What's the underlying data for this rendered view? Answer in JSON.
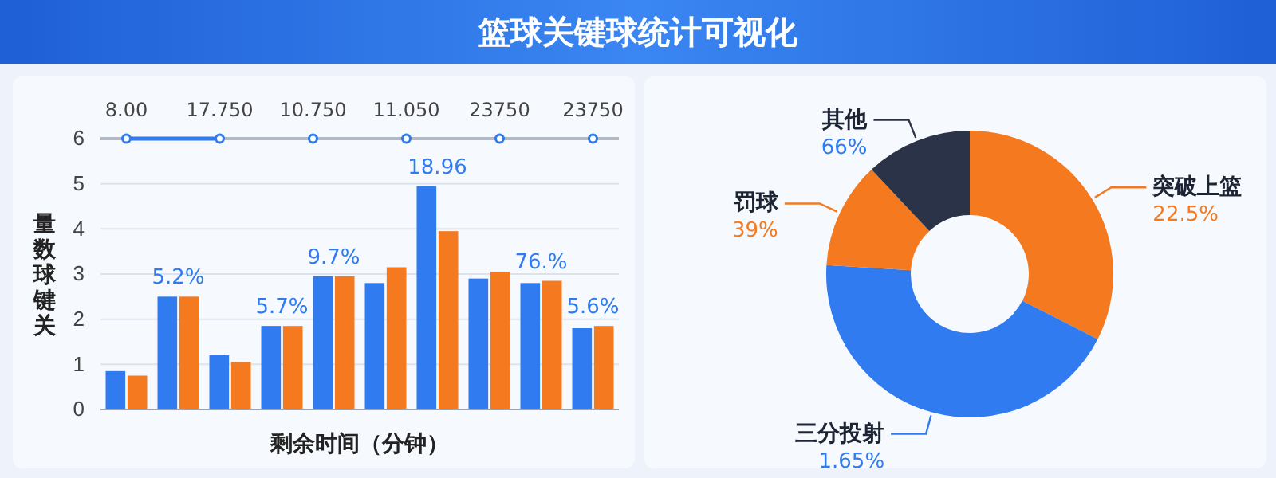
{
  "chart_data": [
    {
      "type": "bar",
      "title": "篮球关键球统计可视化",
      "xlabel": "剩余时间（分钟）",
      "ylabel": "量数球键关",
      "categories": [
        null,
        null,
        null,
        null,
        null,
        null,
        null,
        null,
        null,
        null
      ],
      "series": [
        {
          "color": "#2f7bef",
          "values": [
            0.85,
            2.5,
            1.2,
            1.85,
            2.95,
            2.8,
            4.95,
            2.9,
            2.8,
            1.8
          ]
        },
        {
          "color": "#f57a1f",
          "values": [
            0.75,
            2.5,
            1.05,
            1.85,
            2.95,
            3.15,
            3.95,
            3.05,
            2.85,
            1.85
          ]
        }
      ],
      "ylim": [
        0,
        6
      ],
      "yticks": [
        0,
        1,
        2,
        3,
        4,
        5,
        6
      ],
      "grid": "y",
      "annotations": [
        "8.00",
        "17.750",
        "10.750",
        "11.050",
        "23750",
        "23750",
        "5.2%",
        "5.7%",
        "9.7%",
        "18.96",
        "76.%",
        "5.6%"
      ]
    },
    {
      "type": "donut",
      "categories": [
        "突破上篮",
        "三分投射",
        "罚球",
        "其他"
      ],
      "values": [
        32.5,
        43.5,
        12,
        12
      ],
      "colors": [
        "#f57a1f",
        "#2f7bef",
        "#f57a1f",
        "#2a3347"
      ],
      "annotations": [
        "22.5%",
        "1.65%",
        "39%",
        "66%"
      ]
    }
  ]
}
